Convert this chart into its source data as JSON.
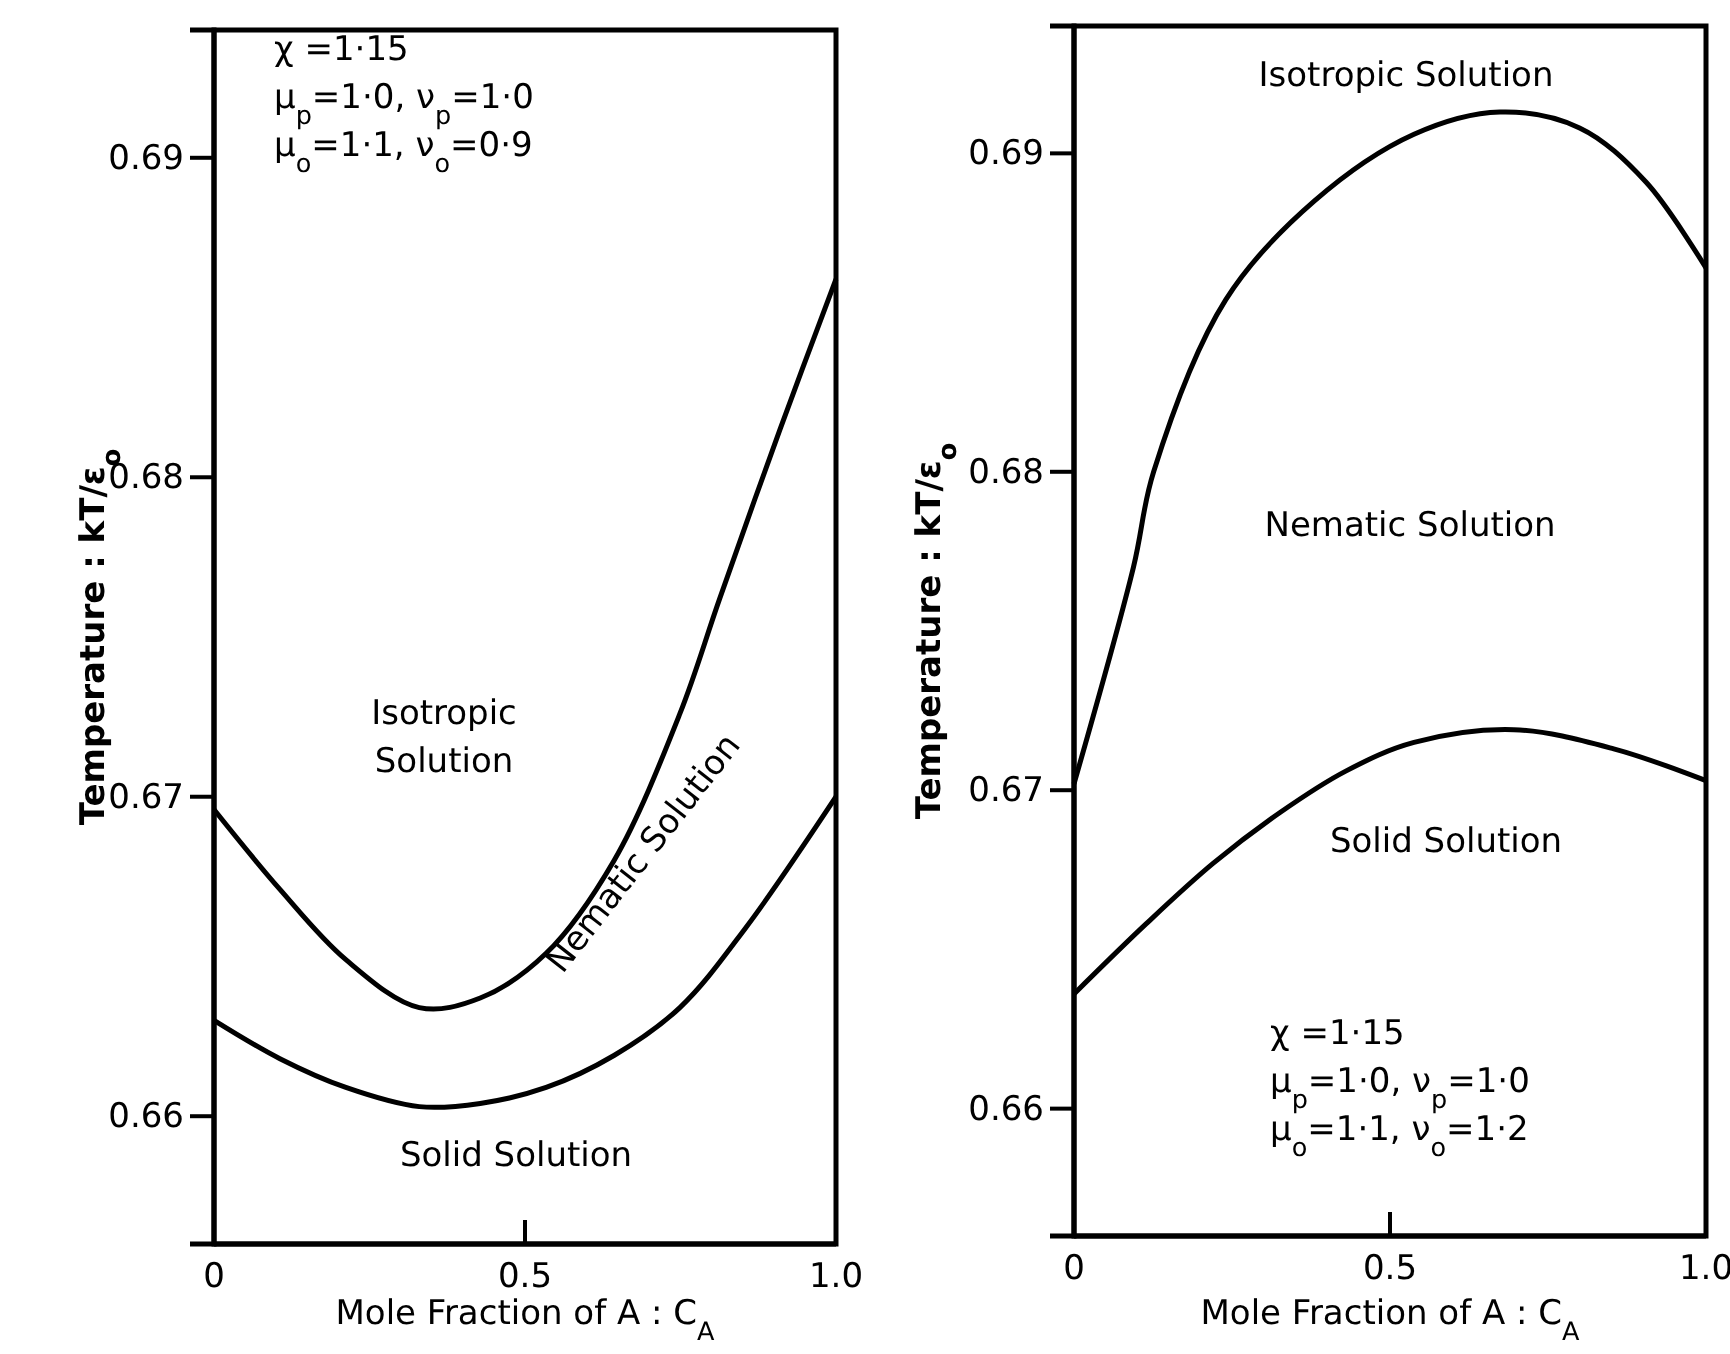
{
  "chart_data": [
    {
      "type": "line",
      "xlabel": "Mole Fraction of A : C$_{A}$",
      "ylabel": "Temperature : kT/ε$_{o}$",
      "xlim": [
        0,
        1.0
      ],
      "ylim": [
        0.656,
        0.694
      ],
      "xticks": [
        {
          "value": 0,
          "label": "0"
        },
        {
          "value": 0.5,
          "label": "0.5"
        },
        {
          "value": 1.0,
          "label": "1.0"
        }
      ],
      "yticks": [
        0.66,
        0.67,
        0.68,
        0.69
      ],
      "series": [
        {
          "color": "#000000",
          "x": [
            0,
            0.106,
            0.212,
            0.33,
            0.428,
            0.534,
            0.643,
            0.749,
            0.813,
            0.91,
            1.0
          ],
          "values": [
            0.6696,
            0.6671,
            0.6649,
            0.6634,
            0.6637,
            0.6651,
            0.668,
            0.6726,
            0.6762,
            0.6815,
            0.6862
          ]
        },
        {
          "color": "#000000",
          "x": [
            0,
            0.106,
            0.212,
            0.33,
            0.428,
            0.534,
            0.643,
            0.749,
            0.855,
            1.0
          ],
          "values": [
            0.663,
            0.6618,
            0.6609,
            0.6603,
            0.6604,
            0.6609,
            0.6619,
            0.6634,
            0.6659,
            0.67
          ]
        }
      ],
      "annotations": [
        "Isotropic\nSolution",
        "Nematic Solution",
        "Solid Solution",
        "χ =1·15\nμ$_{p}$=1·0,  ν$_{p}$=1·0\nμ$_{o}$=1·1,  ν$_{o}$=0·9"
      ]
    },
    {
      "type": "line",
      "xlabel": "Mole Fraction of A : C$_{A}$",
      "ylabel": "Temperature : kT/ε$_{o}$",
      "xlim": [
        0,
        1.0
      ],
      "ylim": [
        0.656,
        0.694
      ],
      "xticks": [
        {
          "value": 0,
          "label": "0"
        },
        {
          "value": 0.5,
          "label": "0.5"
        },
        {
          "value": 1.0,
          "label": "1.0"
        }
      ],
      "yticks": [
        0.66,
        0.67,
        0.68,
        0.69
      ],
      "series": [
        {
          "color": "#000000",
          "x": [
            0,
            0.094,
            0.126,
            0.24,
            0.38,
            0.538,
            0.674,
            0.8,
            0.905,
            1.0
          ],
          "values": [
            0.6702,
            0.677,
            0.68,
            0.6854,
            0.6885,
            0.6906,
            0.6913,
            0.6908,
            0.6891,
            0.6864
          ]
        },
        {
          "color": "#000000",
          "x": [
            0,
            0.114,
            0.22,
            0.326,
            0.43,
            0.538,
            0.696,
            0.854,
            1.0
          ],
          "values": [
            0.6636,
            0.6658,
            0.6677,
            0.6693,
            0.6706,
            0.6715,
            0.6719,
            0.6713,
            0.6703
          ]
        }
      ],
      "annotations": [
        "Isotropic Solution",
        "Nematic Solution",
        "Solid Solution",
        "χ =1·15\nμ$_{p}$=1·0,  ν$_{p}$=1·0\nμ$_{o}$=1·1,  ν$_{o}$=1·2"
      ]
    }
  ]
}
